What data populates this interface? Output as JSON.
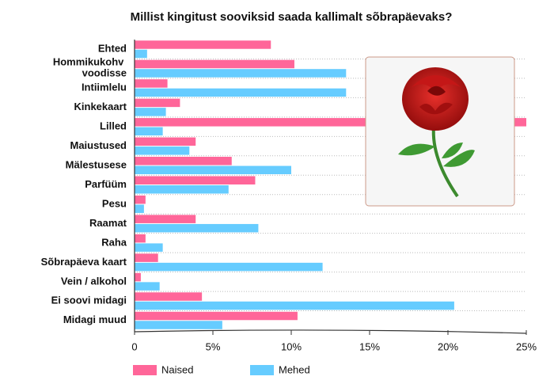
{
  "chart_data": {
    "type": "hbar",
    "title": "Millist kingitust sooviksid saada kallimalt sõbrapäevaks?",
    "categories": [
      "Ehted",
      "Hommikukohv voodisse",
      "Intiimlelu",
      "Kinkekaart",
      "Lilled",
      "Maiustused",
      "Mälestusese",
      "Parfüüm",
      "Pesu",
      "Raamat",
      "Raha",
      "Sõbrapäeva kaart",
      "Vein / alkohol",
      "Ei soovi midagi",
      "Midagi muud"
    ],
    "series": [
      {
        "name": "Naised",
        "color": "#ff6699",
        "values": [
          8.7,
          10.2,
          2.1,
          2.9,
          25,
          3.9,
          6.2,
          7.7,
          0.7,
          3.9,
          0.7,
          1.5,
          0.4,
          4.3,
          10.4
        ]
      },
      {
        "name": "Mehed",
        "color": "#66ccff",
        "values": [
          0.8,
          13.5,
          13.5,
          2.0,
          1.8,
          3.5,
          10.0,
          6.0,
          0.6,
          7.9,
          1.8,
          12.0,
          1.6,
          20.4,
          5.6
        ]
      }
    ],
    "xlim": [
      0,
      25
    ],
    "xticks": [
      0,
      {
        "value": 5,
        "label": "5%"
      },
      {
        "value": 10,
        "label": "10%"
      },
      {
        "value": 15,
        "label": "15%"
      },
      {
        "value": 20,
        "label": "20%"
      },
      {
        "value": 25,
        "label": "25%"
      }
    ]
  }
}
